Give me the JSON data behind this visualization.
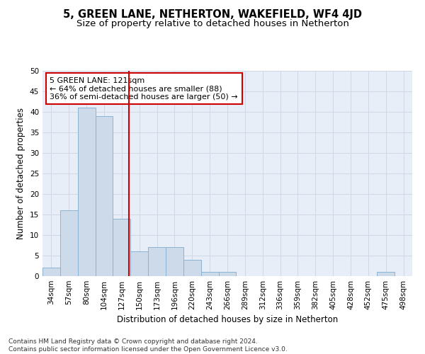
{
  "title1": "5, GREEN LANE, NETHERTON, WAKEFIELD, WF4 4JD",
  "title2": "Size of property relative to detached houses in Netherton",
  "xlabel": "Distribution of detached houses by size in Netherton",
  "ylabel": "Number of detached properties",
  "bin_labels": [
    "34sqm",
    "57sqm",
    "80sqm",
    "104sqm",
    "127sqm",
    "150sqm",
    "173sqm",
    "196sqm",
    "220sqm",
    "243sqm",
    "266sqm",
    "289sqm",
    "312sqm",
    "336sqm",
    "359sqm",
    "382sqm",
    "405sqm",
    "428sqm",
    "452sqm",
    "475sqm",
    "498sqm"
  ],
  "bar_heights": [
    2,
    16,
    41,
    39,
    14,
    6,
    7,
    7,
    4,
    1,
    1,
    0,
    0,
    0,
    0,
    0,
    0,
    0,
    0,
    1,
    0
  ],
  "bar_color": "#ccdaea",
  "bar_edge_color": "#8ab4d4",
  "grid_color": "#d0d8e8",
  "background_color": "#e8eef8",
  "vline_color": "#cc0000",
  "vline_x": 4.42,
  "annotation_text": "5 GREEN LANE: 121sqm\n← 64% of detached houses are smaller (88)\n36% of semi-detached houses are larger (50) →",
  "annotation_box_color": "#ffffff",
  "annotation_box_edge": "#cc0000",
  "ylim": [
    0,
    50
  ],
  "yticks": [
    0,
    5,
    10,
    15,
    20,
    25,
    30,
    35,
    40,
    45,
    50
  ],
  "footnote": "Contains HM Land Registry data © Crown copyright and database right 2024.\nContains public sector information licensed under the Open Government Licence v3.0.",
  "title1_fontsize": 10.5,
  "title2_fontsize": 9.5,
  "xlabel_fontsize": 8.5,
  "ylabel_fontsize": 8.5,
  "tick_fontsize": 7.5,
  "annot_fontsize": 8,
  "footnote_fontsize": 6.5
}
